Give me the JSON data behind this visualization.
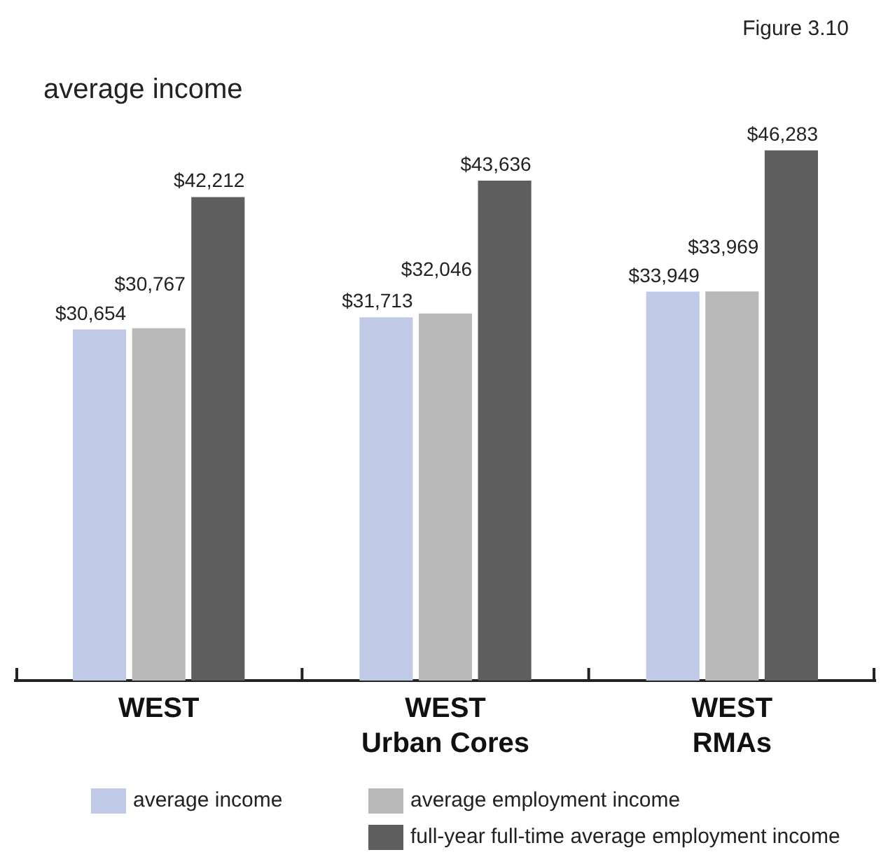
{
  "chart_data": {
    "type": "bar",
    "title": "average income",
    "annotations": [
      "Figure 3.10"
    ],
    "categories": [
      "WEST",
      "WEST\nUrban Cores",
      "WEST\nRMAs"
    ],
    "series": [
      {
        "name": "average income",
        "color": "#c0cae6",
        "values": [
          30654,
          31713,
          33949
        ],
        "value_labels": [
          "$30,654",
          "$31,713",
          "$33,949"
        ]
      },
      {
        "name": "average employment income",
        "color": "#b9b9b9",
        "values": [
          30767,
          32046,
          33969
        ],
        "value_labels": [
          "$30,767",
          "$32,046",
          "$33,969"
        ]
      },
      {
        "name": "full-year full-time average employment income",
        "color": "#5e5e5e",
        "values": [
          42212,
          43636,
          46283
        ],
        "value_labels": [
          "$42,212",
          "$43,636",
          "$46,283"
        ]
      }
    ],
    "legend": "bottom"
  }
}
